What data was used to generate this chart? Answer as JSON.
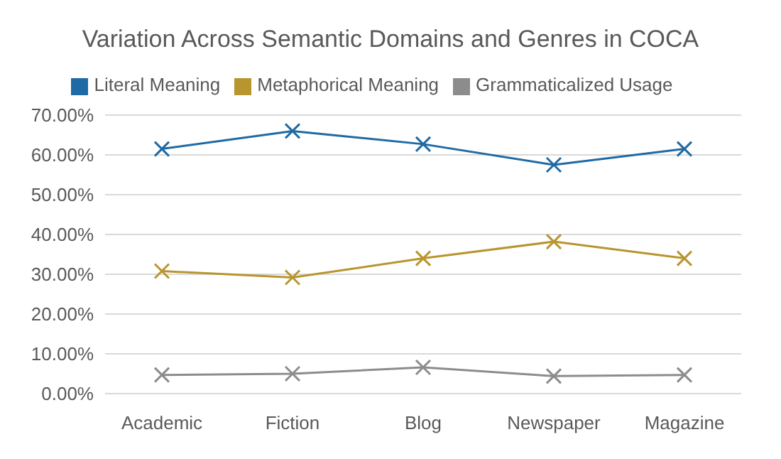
{
  "chart_data": {
    "type": "line",
    "title": "Variation Across Semantic Domains and Genres in COCA",
    "categories": [
      "Academic",
      "Fiction",
      "Blog",
      "Newspaper",
      "Magazine"
    ],
    "series": [
      {
        "name": "Literal Meaning",
        "color": "#1f6aa5",
        "values": [
          61.5,
          66,
          62.7,
          57.5,
          61.5
        ]
      },
      {
        "name": "Metaphorical Meaning",
        "color": "#b8952e",
        "values": [
          30.8,
          29.2,
          34,
          38.2,
          34
        ]
      },
      {
        "name": "Grammaticalized Usage",
        "color": "#8c8c8c",
        "values": [
          4.7,
          5,
          6.6,
          4.4,
          4.7
        ]
      }
    ],
    "ylim": [
      0,
      70
    ],
    "yticks": [
      {
        "value": 0,
        "label": "0.00%"
      },
      {
        "value": 10,
        "label": "10.00%"
      },
      {
        "value": 20,
        "label": "20.00%"
      },
      {
        "value": 30,
        "label": "30.00%"
      },
      {
        "value": 40,
        "label": "40.00%"
      },
      {
        "value": 50,
        "label": "50.00%"
      },
      {
        "value": 60,
        "label": "60.00%"
      },
      {
        "value": 70,
        "label": "70.00%"
      }
    ],
    "grid": "y",
    "legend": "top",
    "marker": "cross",
    "line_style": "solid"
  }
}
